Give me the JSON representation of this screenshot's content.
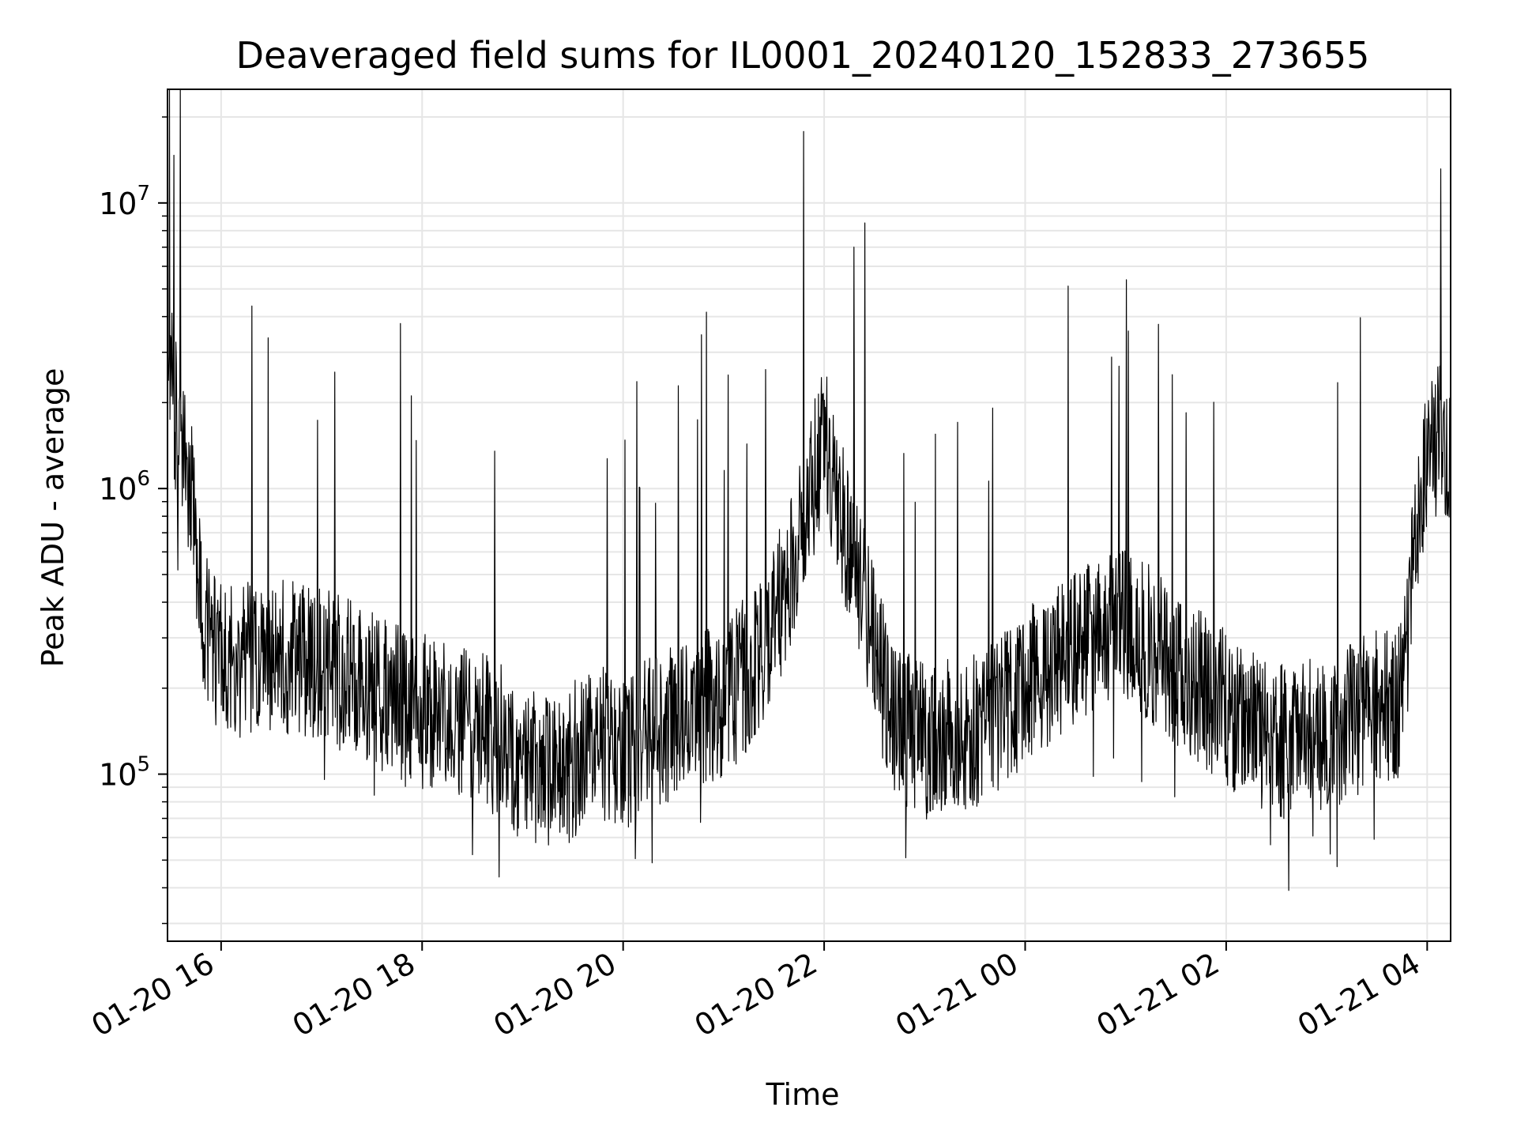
{
  "chart_data": {
    "type": "line",
    "title": "Deaveraged field sums for IL0001_20240120_152833_273655",
    "xlabel": "Time",
    "ylabel": "Peak ADU - average",
    "yscale": "log",
    "grid": true,
    "line_color": "#000000",
    "grid_color": "#e6e6e6",
    "xlim": [
      "2024-01-20 15:28",
      "2024-01-21 04:14"
    ],
    "ylim": [
      26000,
      25000000
    ],
    "x_ticks": [
      {
        "value": "2024-01-20 16:00",
        "label": "01-20 16"
      },
      {
        "value": "2024-01-20 18:00",
        "label": "01-20 18"
      },
      {
        "value": "2024-01-20 20:00",
        "label": "01-20 20"
      },
      {
        "value": "2024-01-20 22:00",
        "label": "01-20 22"
      },
      {
        "value": "2024-01-21 00:00",
        "label": "01-21 00"
      },
      {
        "value": "2024-01-21 02:00",
        "label": "01-21 02"
      },
      {
        "value": "2024-01-21 04:00",
        "label": "01-21 04"
      }
    ],
    "y_ticks": [
      {
        "value": 100000,
        "base": "10",
        "exp": "5"
      },
      {
        "value": 1000000,
        "base": "10",
        "exp": "6"
      },
      {
        "value": 10000000,
        "base": "10",
        "exp": "7"
      }
    ],
    "series": [
      {
        "x": [
          "2024-01-20 15:28",
          "2024-01-20 15:35",
          "2024-01-20 15:42",
          "2024-01-20 15:49",
          "2024-01-20 15:56",
          "2024-01-20 16:10",
          "2024-01-20 16:30",
          "2024-01-20 17:00",
          "2024-01-20 17:30",
          "2024-01-20 17:50",
          "2024-01-20 18:10",
          "2024-01-20 18:30",
          "2024-01-20 18:40",
          "2024-01-20 19:00",
          "2024-01-20 19:20",
          "2024-01-20 19:40",
          "2024-01-20 20:00",
          "2024-01-20 20:20",
          "2024-01-20 20:40",
          "2024-01-20 21:00",
          "2024-01-20 21:20",
          "2024-01-20 21:40",
          "2024-01-20 22:00",
          "2024-01-20 22:10",
          "2024-01-20 22:30",
          "2024-01-20 22:40",
          "2024-01-20 23:00",
          "2024-01-20 23:30",
          "2024-01-21 00:00",
          "2024-01-21 00:30",
          "2024-01-21 01:00",
          "2024-01-21 01:30",
          "2024-01-21 02:00",
          "2024-01-21 02:30",
          "2024-01-21 03:00",
          "2024-01-21 03:30",
          "2024-01-21 03:45",
          "2024-01-21 03:55",
          "2024-01-21 04:05",
          "2024-01-21 04:14"
        ],
        "y": [
          2800000,
          1500000,
          1000000,
          350000,
          280000,
          250000,
          260000,
          240000,
          200000,
          170000,
          160000,
          150000,
          140000,
          110000,
          95000,
          130000,
          120000,
          140000,
          165000,
          180000,
          250000,
          500000,
          1500000,
          800000,
          280000,
          160000,
          130000,
          140000,
          200000,
          280000,
          350000,
          230000,
          170000,
          130000,
          140000,
          170000,
          180000,
          900000,
          1500000,
          1300000
        ]
      }
    ]
  }
}
